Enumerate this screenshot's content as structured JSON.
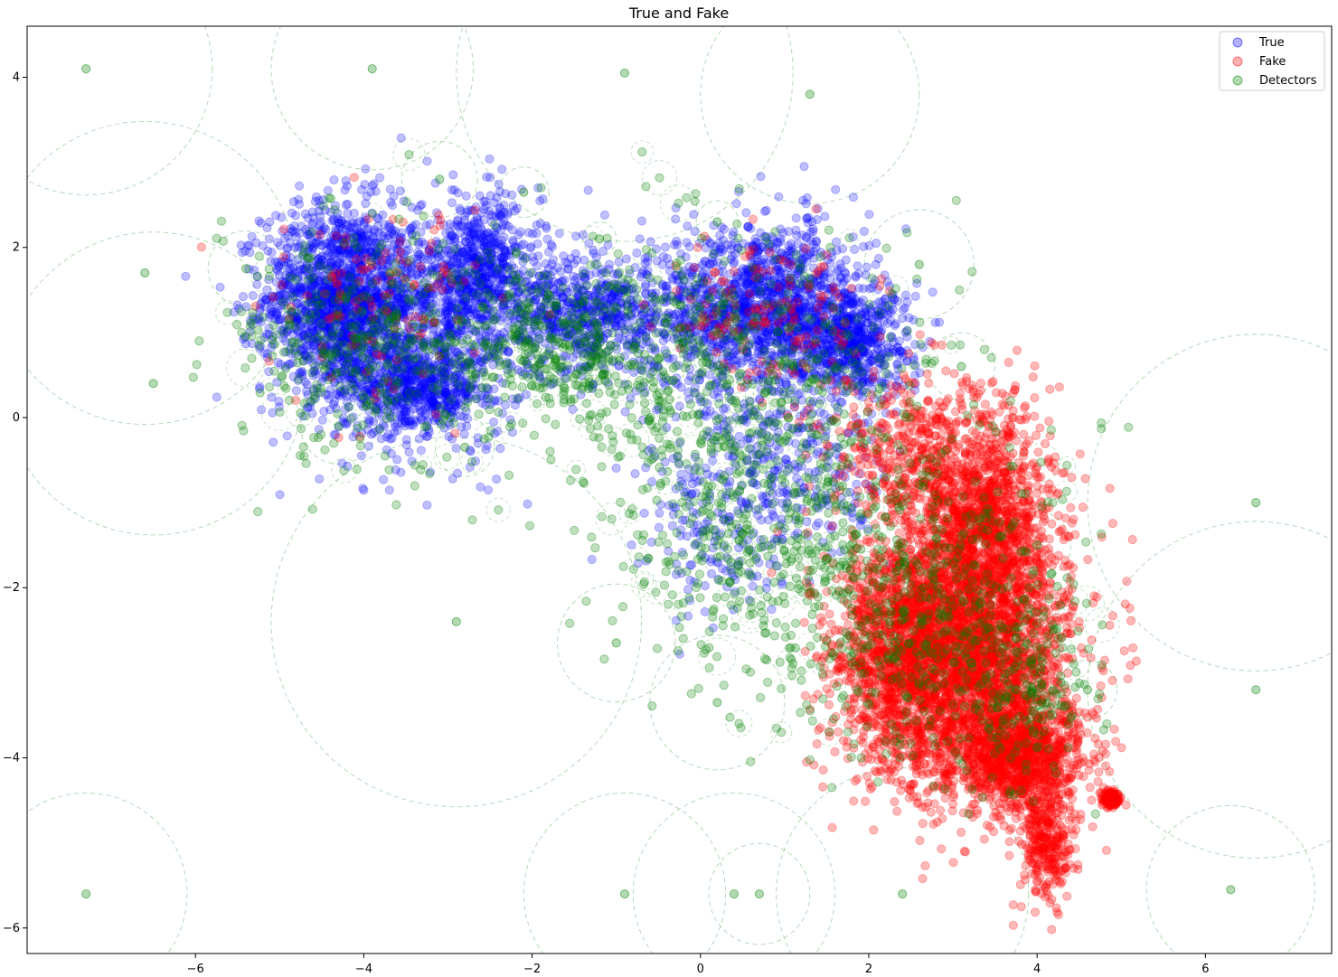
{
  "chart_data": {
    "type": "scatter",
    "title": "True and Fake",
    "xlabel": "",
    "ylabel": "",
    "xlim": [
      -8.0,
      7.5
    ],
    "ylim": [
      -6.3,
      4.6
    ],
    "xticks": [
      -6,
      -4,
      -2,
      0,
      2,
      4,
      6
    ],
    "yticks": [
      -6,
      -4,
      -2,
      0,
      2,
      4
    ],
    "grid": false,
    "legend_position": "top-right",
    "colors": {
      "true": "#0000ff",
      "fake": "#ff0000",
      "detectors": "#008000"
    },
    "series": [
      {
        "name": "True",
        "color": "#0000ff",
        "clusters": [
          {
            "center": [
              -4.3,
              1.4
            ],
            "spread": [
              0.45,
              0.55
            ],
            "count": 1400
          },
          {
            "center": [
              -3.3,
              1.0
            ],
            "spread": [
              0.6,
              0.7
            ],
            "count": 900
          },
          {
            "center": [
              -2.6,
              1.8
            ],
            "spread": [
              0.35,
              0.4
            ],
            "count": 500
          },
          {
            "center": [
              -3.4,
              0.3
            ],
            "spread": [
              0.4,
              0.2
            ],
            "count": 400
          },
          {
            "center": [
              -1.3,
              1.2
            ],
            "spread": [
              0.6,
              0.35
            ],
            "count": 700
          },
          {
            "center": [
              0.8,
              1.3
            ],
            "spread": [
              0.6,
              0.5
            ],
            "count": 1300
          },
          {
            "center": [
              1.8,
              0.9
            ],
            "spread": [
              0.35,
              0.3
            ],
            "count": 500
          },
          {
            "center": [
              0.9,
              -0.6
            ],
            "spread": [
              0.7,
              0.6
            ],
            "count": 350
          },
          {
            "center": [
              0.2,
              -1.5
            ],
            "spread": [
              0.5,
              0.5
            ],
            "count": 100
          }
        ]
      },
      {
        "name": "Fake",
        "color": "#ff0000",
        "clusters": [
          {
            "center": [
              3.2,
              -2.8
            ],
            "spread": [
              0.6,
              0.8
            ],
            "count": 2800
          },
          {
            "center": [
              3.4,
              -1.2
            ],
            "spread": [
              0.4,
              0.7
            ],
            "count": 1200
          },
          {
            "center": [
              3.8,
              -4.0
            ],
            "spread": [
              0.4,
              0.3
            ],
            "count": 900
          },
          {
            "center": [
              4.1,
              -5.0
            ],
            "spread": [
              0.15,
              0.35
            ],
            "count": 300
          },
          {
            "center": [
              2.3,
              -2.8
            ],
            "spread": [
              0.4,
              0.7
            ],
            "count": 900
          },
          {
            "center": [
              4.87,
              -4.48
            ],
            "spread": [
              0.06,
              0.05
            ],
            "count": 120
          },
          {
            "center": [
              2.5,
              -0.5
            ],
            "spread": [
              0.5,
              0.5
            ],
            "count": 400
          },
          {
            "center": [
              -3.8,
              1.4
            ],
            "spread": [
              0.6,
              0.6
            ],
            "count": 120
          },
          {
            "center": [
              0.8,
              1.2
            ],
            "spread": [
              0.6,
              0.5
            ],
            "count": 150
          }
        ]
      },
      {
        "name": "Detectors",
        "color": "#008000",
        "points": [
          [
            -7.3,
            4.1,
            1.5
          ],
          [
            -3.9,
            4.1,
            1.2
          ],
          [
            -0.9,
            4.05,
            2.0
          ],
          [
            1.3,
            3.8,
            1.3
          ],
          [
            -3.1,
            2.8,
            0.45
          ],
          [
            -2.1,
            2.65,
            0.3
          ],
          [
            -1.2,
            2.1,
            0.2
          ],
          [
            0.2,
            2.3,
            0.25
          ],
          [
            2.6,
            1.8,
            0.65
          ],
          [
            -5.4,
            1.75,
            0.45
          ],
          [
            -6.6,
            1.7,
            1.8
          ],
          [
            -6.5,
            0.4,
            1.8
          ],
          [
            3.1,
            0.6,
            0.4
          ],
          [
            6.6,
            -1.0,
            2.0
          ],
          [
            -4.3,
            -0.1,
            0.45
          ],
          [
            -2.8,
            -0.35,
            0.35
          ],
          [
            -2.9,
            -2.4,
            2.2
          ],
          [
            -1.0,
            -2.65,
            0.7
          ],
          [
            0.2,
            -3.35,
            0.8
          ],
          [
            4.6,
            -3.2,
            0.35
          ],
          [
            6.6,
            -3.2,
            2.0
          ],
          [
            -7.3,
            -5.6,
            1.2
          ],
          [
            0.4,
            -5.6,
            1.2
          ],
          [
            2.4,
            -5.6,
            1.5
          ],
          [
            6.3,
            -5.55,
            1.0
          ],
          [
            -0.9,
            -5.6,
            1.2
          ],
          [
            0.7,
            -5.6,
            0.6
          ],
          [
            4.0,
            -1.5,
            0.4
          ]
        ],
        "cluster_like": [
          {
            "center": [
              -3.9,
              0.9
            ],
            "spread": [
              0.9,
              0.7
            ],
            "count": 420
          },
          {
            "center": [
              -1.5,
              0.9
            ],
            "spread": [
              0.8,
              0.5
            ],
            "count": 420
          },
          {
            "center": [
              0.6,
              0.2
            ],
            "spread": [
              1.0,
              0.9
            ],
            "count": 520
          },
          {
            "center": [
              0.6,
              -1.6
            ],
            "spread": [
              0.8,
              0.8
            ],
            "count": 300
          },
          {
            "center": [
              2.6,
              -2.2
            ],
            "spread": [
              0.9,
              1.0
            ],
            "count": 520
          },
          {
            "center": [
              3.9,
              -3.2
            ],
            "spread": [
              0.4,
              0.6
            ],
            "count": 160
          }
        ]
      }
    ]
  }
}
